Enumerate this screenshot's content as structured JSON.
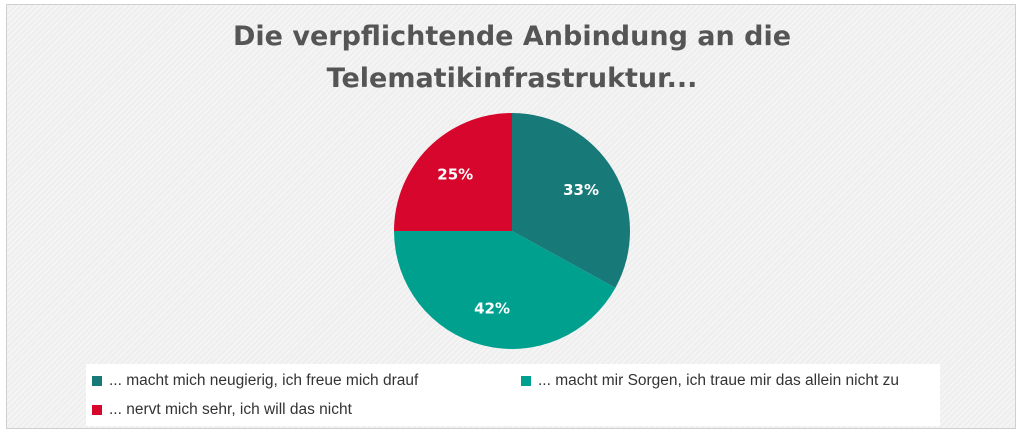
{
  "chart_data": {
    "type": "pie",
    "title_lines": [
      "Die verpflichtende Anbindung an die",
      "Telematikinfrastruktur..."
    ],
    "slices": [
      {
        "label": "... macht mich neugierig, ich freue mich drauf",
        "value": 33,
        "display": "33%",
        "color": "#187a78"
      },
      {
        "label": "... macht mir Sorgen, ich traue mir das allein nicht zu",
        "value": 42,
        "display": "42%",
        "color": "#00a08e"
      },
      {
        "label": "... nervt mich sehr, ich will das nicht",
        "value": 25,
        "display": "25%",
        "color": "#d6062c"
      }
    ],
    "start_angle_deg": 0,
    "direction": "clockwise",
    "legend_position": "bottom"
  }
}
